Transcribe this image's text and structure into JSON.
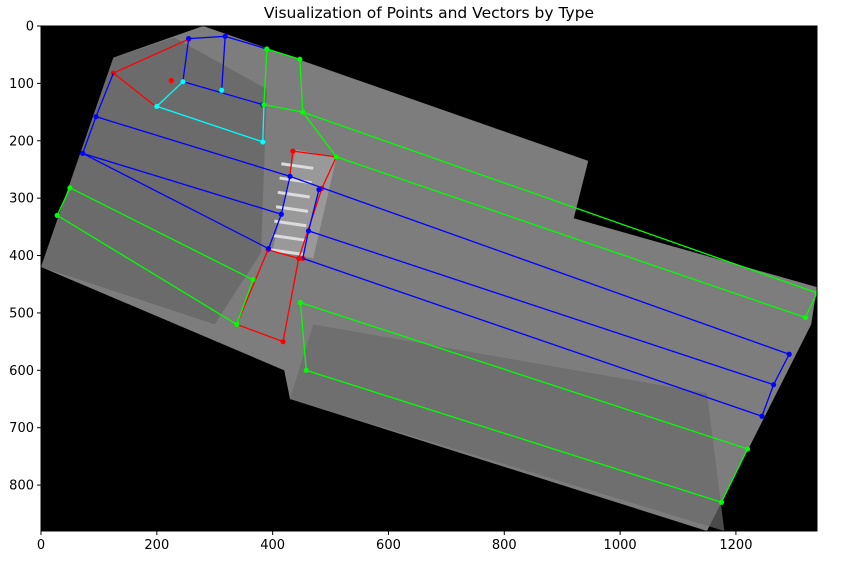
{
  "chart_data": {
    "type": "scatter",
    "title": "Visualization of Points and Vectors by Type",
    "xlabel": "",
    "ylabel": "",
    "xlim": [
      0,
      1340
    ],
    "ylim": [
      880,
      0
    ],
    "y_inverted": true,
    "grid": false,
    "xticks": [
      0,
      200,
      400,
      600,
      800,
      1000,
      1200
    ],
    "yticks": [
      0,
      100,
      200,
      300,
      400,
      500,
      600,
      700,
      800
    ],
    "background_image": "grayscale aerial view of a road with a zebra crosswalk and trees",
    "series": [
      {
        "color": "#ff0000",
        "points": [
          [
            125,
            82
          ],
          [
            255,
            23
          ],
          [
            225,
            95
          ],
          [
            435,
            218
          ],
          [
            510,
            228
          ],
          [
            485,
            283
          ],
          [
            445,
            405
          ],
          [
            392,
            390
          ],
          [
            338,
            520
          ],
          [
            418,
            550
          ],
          [
            452,
            405
          ]
        ],
        "segments": [
          [
            [
              125,
              82
            ],
            [
              255,
              23
            ]
          ],
          [
            [
              125,
              82
            ],
            [
              198,
              140
            ]
          ],
          [
            [
              435,
              218
            ],
            [
              510,
              228
            ]
          ],
          [
            [
              510,
              228
            ],
            [
              485,
              283
            ]
          ],
          [
            [
              435,
              218
            ],
            [
              430,
              260
            ]
          ],
          [
            [
              392,
              390
            ],
            [
              338,
              520
            ]
          ],
          [
            [
              338,
              520
            ],
            [
              418,
              550
            ]
          ],
          [
            [
              418,
              550
            ],
            [
              445,
              405
            ]
          ],
          [
            [
              392,
              390
            ],
            [
              445,
              405
            ]
          ],
          [
            [
              445,
              405
            ],
            [
              485,
              283
            ]
          ]
        ]
      },
      {
        "color": "#0000ff",
        "points": [
          [
            255,
            22
          ],
          [
            318,
            18
          ],
          [
            245,
            97
          ],
          [
            312,
            112
          ],
          [
            383,
            137
          ],
          [
            95,
            158
          ],
          [
            72,
            222
          ],
          [
            430,
            262
          ],
          [
            415,
            328
          ],
          [
            393,
            388
          ],
          [
            462,
            357
          ],
          [
            480,
            285
          ],
          [
            1292,
            572
          ],
          [
            1265,
            625
          ],
          [
            1245,
            680
          ]
        ],
        "segments": [
          [
            [
              255,
              22
            ],
            [
              318,
              18
            ]
          ],
          [
            [
              318,
              18
            ],
            [
              390,
              40
            ]
          ],
          [
            [
              255,
              22
            ],
            [
              245,
              97
            ]
          ],
          [
            [
              318,
              18
            ],
            [
              312,
              112
            ]
          ],
          [
            [
              245,
              97
            ],
            [
              383,
              137
            ]
          ],
          [
            [
              125,
              82
            ],
            [
              95,
              158
            ]
          ],
          [
            [
              95,
              158
            ],
            [
              72,
              222
            ]
          ],
          [
            [
              95,
              158
            ],
            [
              430,
              262
            ]
          ],
          [
            [
              72,
              222
            ],
            [
              415,
              328
            ]
          ],
          [
            [
              72,
              222
            ],
            [
              393,
              388
            ]
          ],
          [
            [
              430,
              262
            ],
            [
              415,
              328
            ]
          ],
          [
            [
              415,
              328
            ],
            [
              393,
              388
            ]
          ],
          [
            [
              480,
              285
            ],
            [
              462,
              357
            ]
          ],
          [
            [
              462,
              357
            ],
            [
              452,
              405
            ]
          ],
          [
            [
              430,
              262
            ],
            [
              1292,
              572
            ]
          ],
          [
            [
              462,
              357
            ],
            [
              1265,
              625
            ]
          ],
          [
            [
              452,
              405
            ],
            [
              1245,
              680
            ]
          ],
          [
            [
              1292,
              572
            ],
            [
              1265,
              625
            ]
          ],
          [
            [
              1265,
              625
            ],
            [
              1245,
              680
            ]
          ]
        ]
      },
      {
        "color": "#00ffff",
        "points": [
          [
            245,
            97
          ],
          [
            200,
            140
          ],
          [
            383,
            202
          ],
          [
            312,
            112
          ]
        ],
        "segments": [
          [
            [
              245,
              97
            ],
            [
              200,
              140
            ]
          ],
          [
            [
              200,
              140
            ],
            [
              383,
              202
            ]
          ],
          [
            [
              383,
              202
            ],
            [
              385,
              137
            ]
          ]
        ]
      },
      {
        "color": "#00ff00",
        "points": [
          [
            390,
            40
          ],
          [
            447,
            58
          ],
          [
            385,
            137
          ],
          [
            452,
            150
          ],
          [
            510,
            228
          ],
          [
            50,
            282
          ],
          [
            28,
            330
          ],
          [
            366,
            442
          ],
          [
            338,
            520
          ],
          [
            448,
            482
          ],
          [
            458,
            600
          ],
          [
            1340,
            465
          ],
          [
            1320,
            508
          ],
          [
            1220,
            737
          ],
          [
            1175,
            830
          ]
        ],
        "segments": [
          [
            [
              390,
              40
            ],
            [
              447,
              58
            ]
          ],
          [
            [
              447,
              58
            ],
            [
              452,
              150
            ]
          ],
          [
            [
              390,
              40
            ],
            [
              385,
              137
            ]
          ],
          [
            [
              385,
              137
            ],
            [
              452,
              150
            ]
          ],
          [
            [
              452,
              150
            ],
            [
              510,
              228
            ]
          ],
          [
            [
              452,
              150
            ],
            [
              1340,
              465
            ]
          ],
          [
            [
              510,
              228
            ],
            [
              1320,
              508
            ]
          ],
          [
            [
              50,
              282
            ],
            [
              28,
              330
            ]
          ],
          [
            [
              50,
              282
            ],
            [
              366,
              442
            ]
          ],
          [
            [
              28,
              330
            ],
            [
              338,
              520
            ]
          ],
          [
            [
              366,
              442
            ],
            [
              338,
              520
            ]
          ],
          [
            [
              448,
              482
            ],
            [
              458,
              600
            ]
          ],
          [
            [
              448,
              482
            ],
            [
              1220,
              737
            ]
          ],
          [
            [
              458,
              600
            ],
            [
              1175,
              830
            ]
          ],
          [
            [
              1340,
              465
            ],
            [
              1320,
              508
            ]
          ],
          [
            [
              1220,
              737
            ],
            [
              1175,
              830
            ]
          ]
        ]
      }
    ]
  }
}
